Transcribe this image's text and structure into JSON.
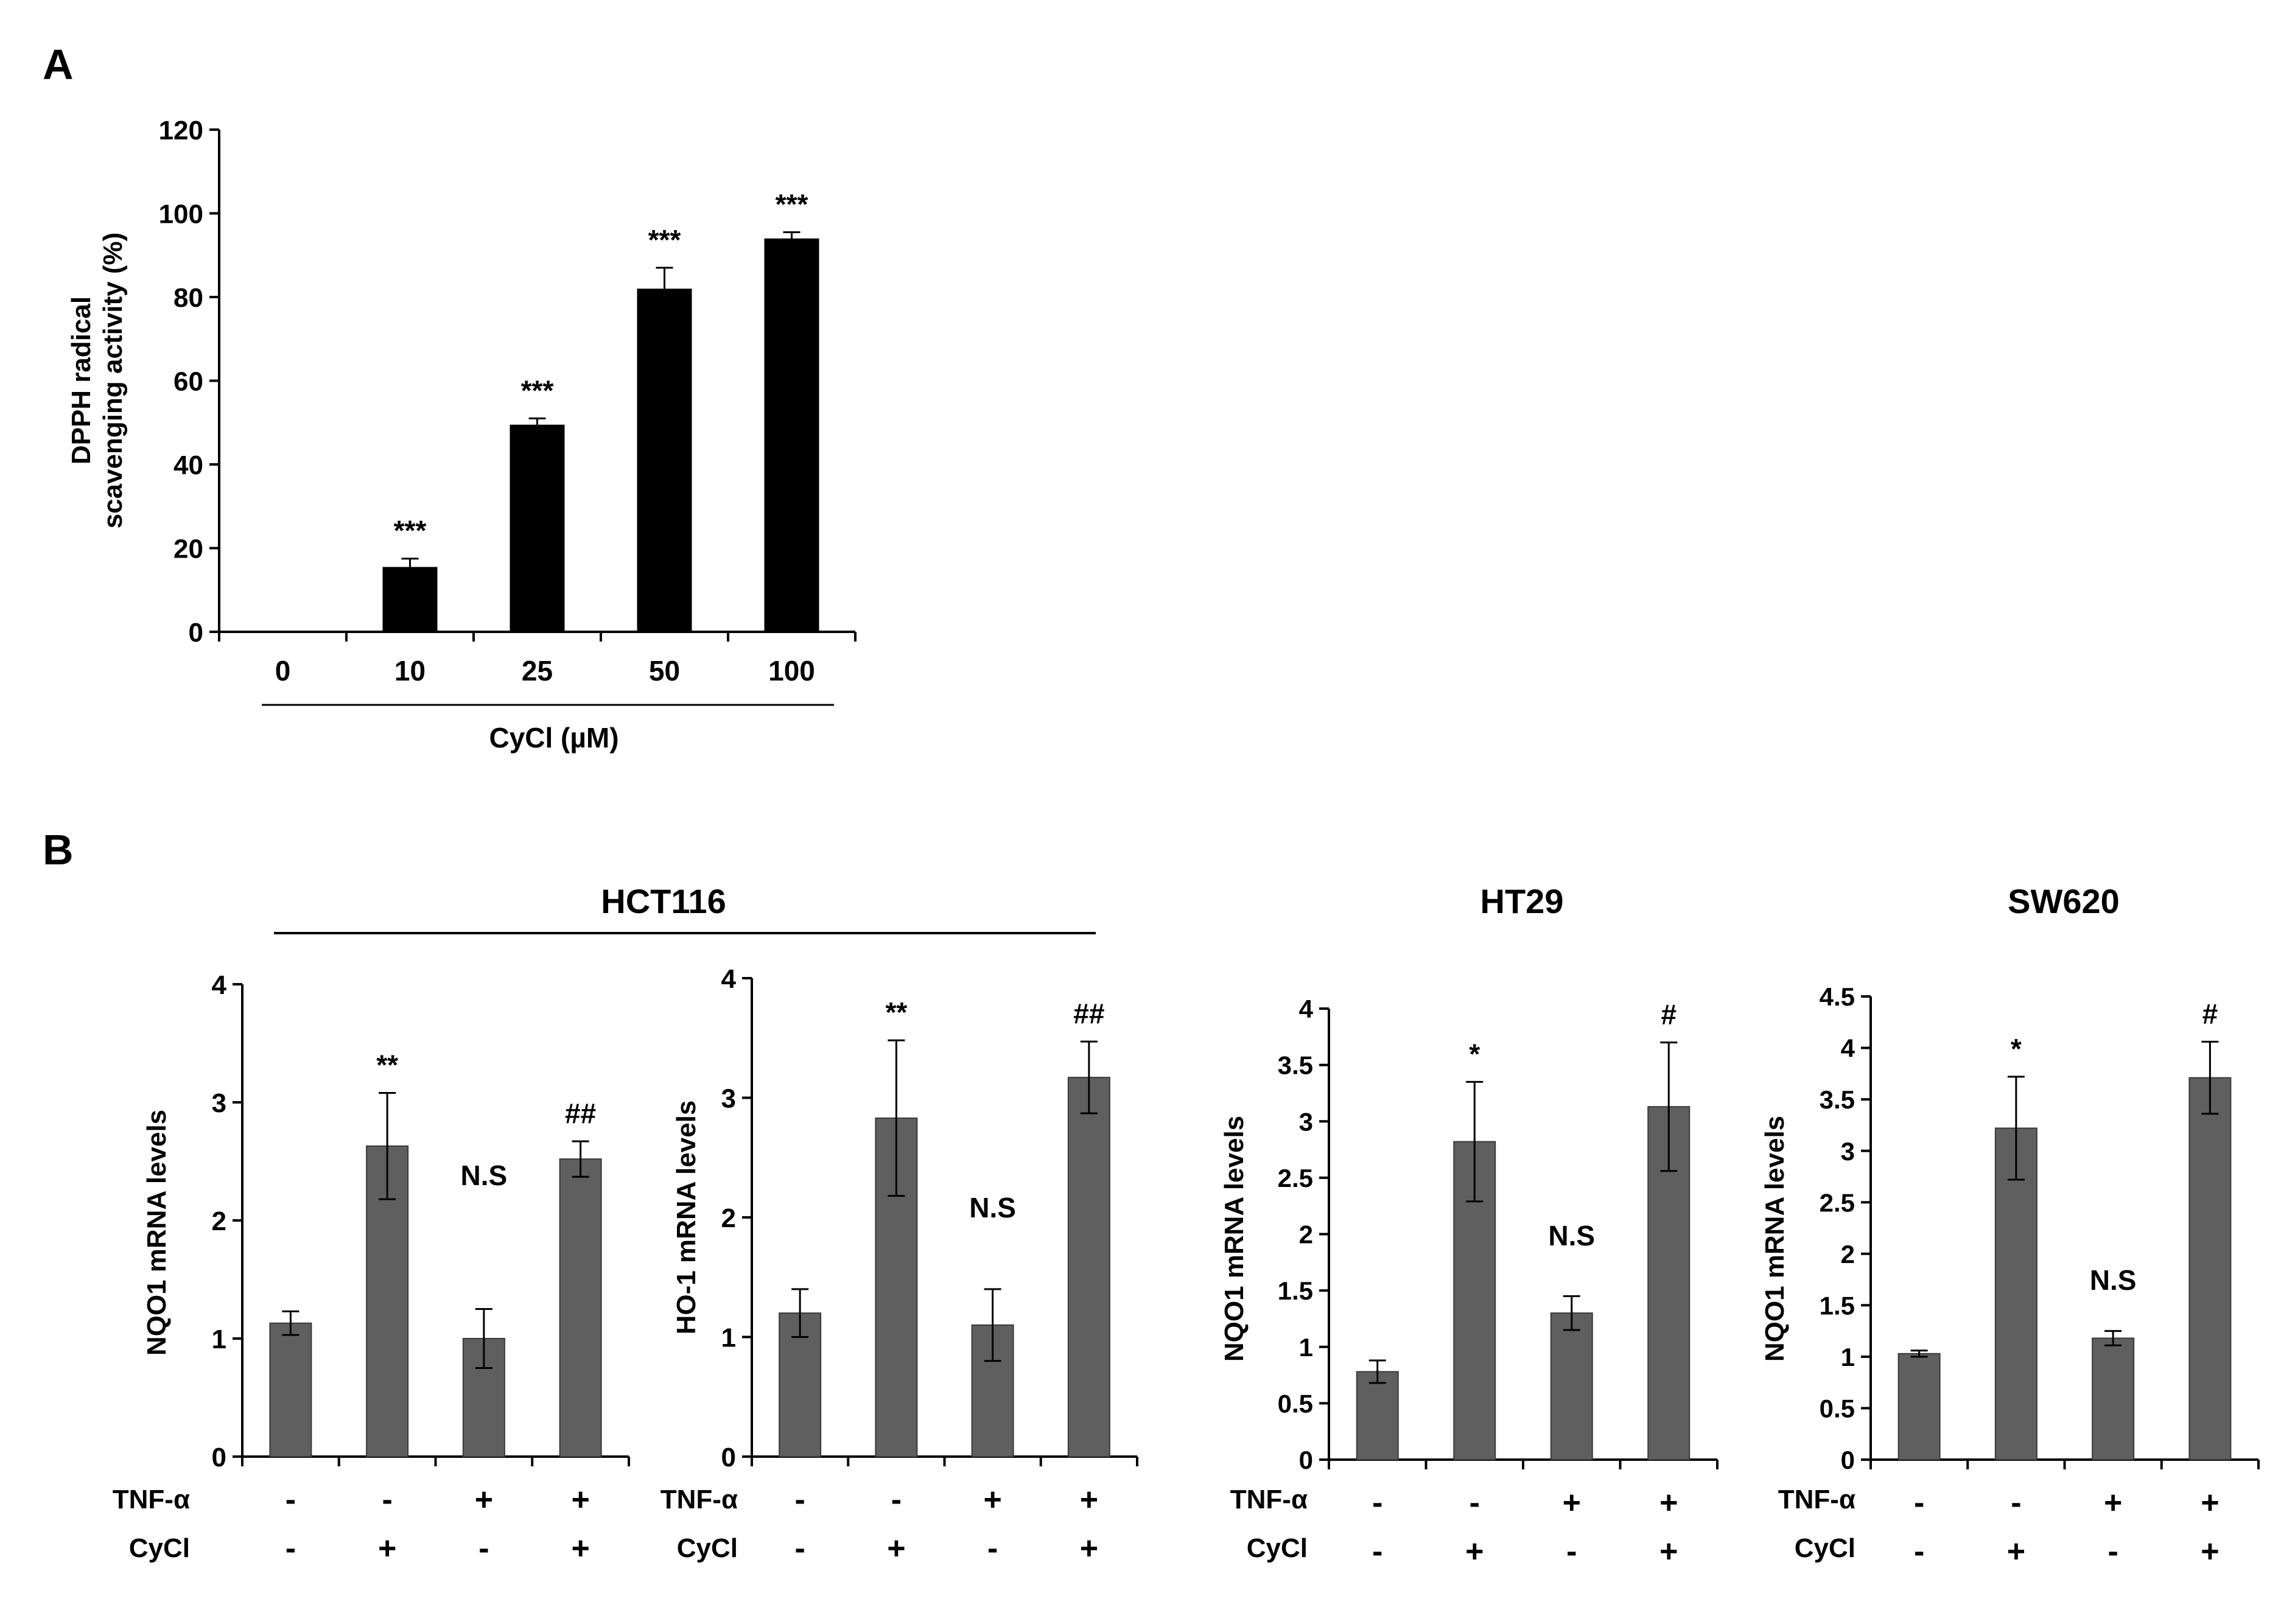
{
  "panel_labels": {
    "A": "A",
    "B": "B"
  },
  "group_titles": {
    "hct116": "HCT116",
    "ht29": "HT29",
    "sw620": "SW620"
  },
  "row_labels": {
    "tnf": "TNF-α",
    "cycl": "CyCl"
  },
  "colors": {
    "bar_a": "#000000",
    "bar_b": "#5f5f5f",
    "axis": "#000000"
  },
  "chart_data": [
    {
      "id": "A",
      "type": "bar",
      "title": "",
      "xlabel": "CyCl (µM)",
      "ylabel_lines": [
        "DPPH radical",
        "scavenging activity (%)"
      ],
      "categories": [
        "0",
        "10",
        "25",
        "50",
        "100"
      ],
      "values": [
        0,
        15.5,
        49.5,
        82,
        94
      ],
      "errors": [
        0,
        2,
        1.5,
        5,
        1.5
      ],
      "annotations": [
        "",
        "***",
        "***",
        "***",
        "***"
      ],
      "ylim": [
        0,
        120
      ],
      "yticks": [
        "0",
        "20",
        "40",
        "60",
        "80",
        "100",
        "120"
      ]
    },
    {
      "id": "B1",
      "type": "bar",
      "title": "HCT116",
      "ylabel": "NQO1 mRNA levels",
      "tnf": [
        "-",
        "-",
        "+",
        "+"
      ],
      "cycl": [
        "-",
        "+",
        "-",
        "+"
      ],
      "values": [
        1.13,
        2.63,
        1.0,
        2.52
      ],
      "errors": [
        0.1,
        0.45,
        0.25,
        0.15
      ],
      "annotations": [
        "",
        "**",
        "N.S",
        "##"
      ],
      "ylim": [
        0,
        4
      ],
      "yticks": [
        "0",
        "1",
        "2",
        "3",
        "4"
      ]
    },
    {
      "id": "B2",
      "type": "bar",
      "title": "HCT116",
      "ylabel": "HO-1 mRNA levels",
      "tnf": [
        "-",
        "-",
        "+",
        "+"
      ],
      "cycl": [
        "-",
        "+",
        "-",
        "+"
      ],
      "values": [
        1.2,
        2.83,
        1.1,
        3.17
      ],
      "errors": [
        0.2,
        0.65,
        0.3,
        0.3
      ],
      "annotations": [
        "",
        "**",
        "N.S",
        "##"
      ],
      "ylim": [
        0,
        4
      ],
      "yticks": [
        "0",
        "1",
        "2",
        "3",
        "4"
      ]
    },
    {
      "id": "B3",
      "type": "bar",
      "title": "HT29",
      "ylabel": "NQO1 mRNA levels",
      "tnf": [
        "-",
        "-",
        "+",
        "+"
      ],
      "cycl": [
        "-",
        "+",
        "-",
        "+"
      ],
      "values": [
        0.78,
        2.82,
        1.3,
        3.13
      ],
      "errors": [
        0.1,
        0.53,
        0.15,
        0.57
      ],
      "annotations": [
        "",
        "*",
        "N.S",
        "#"
      ],
      "ylim": [
        0,
        4
      ],
      "yticks": [
        "0",
        "0.5",
        "1",
        "1.5",
        "2",
        "2.5",
        "3",
        "3.5",
        "4"
      ]
    },
    {
      "id": "B4",
      "type": "bar",
      "title": "SW620",
      "ylabel": "NQO1 mRNA levels",
      "tnf": [
        "-",
        "-",
        "+",
        "+"
      ],
      "cycl": [
        "-",
        "+",
        "-",
        "+"
      ],
      "values": [
        1.03,
        3.22,
        1.18,
        3.71
      ],
      "errors": [
        0.03,
        0.5,
        0.07,
        0.35
      ],
      "annotations": [
        "",
        "*",
        "N.S",
        "#"
      ],
      "ylim": [
        0,
        4.5
      ],
      "yticks": [
        "0",
        "0.5",
        "1",
        "1.5",
        "2",
        "2.5",
        "3",
        "3.5",
        "4",
        "4.5"
      ]
    }
  ]
}
